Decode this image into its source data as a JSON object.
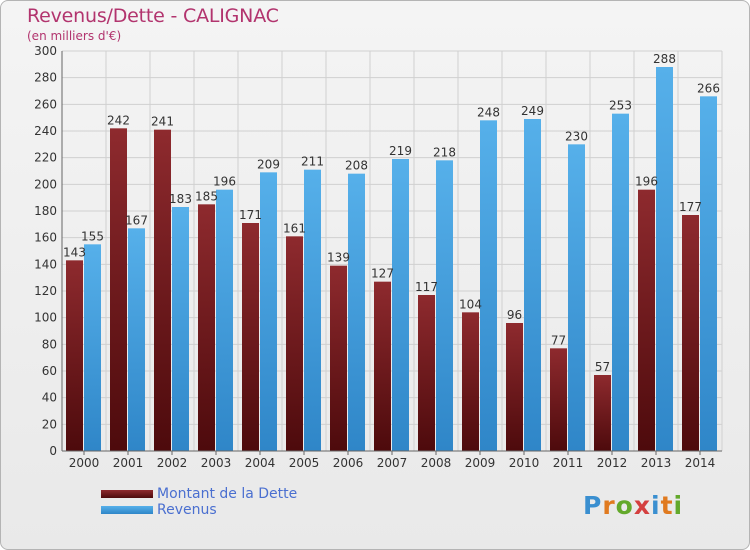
{
  "title": "Revenus/Dette - CALIGNAC",
  "subtitle": "(en milliers d'€)",
  "logo_text": "Proxiti",
  "colors": {
    "dette": "#7a1f22",
    "revenus": "#4aa3e0",
    "title": "#b2346e",
    "legend_text": "#4a6fd0"
  },
  "chart_data": {
    "type": "bar",
    "title": "Revenus/Dette - CALIGNAC",
    "ylabel": "(en milliers d'€)",
    "categories": [
      "2000",
      "2001",
      "2002",
      "2003",
      "2004",
      "2005",
      "2006",
      "2007",
      "2008",
      "2009",
      "2010",
      "2011",
      "2012",
      "2013",
      "2014"
    ],
    "series": [
      {
        "name": "Montant de la Dette",
        "values": [
          143,
          242,
          241,
          185,
          171,
          161,
          139,
          127,
          117,
          104,
          96,
          77,
          57,
          196,
          177
        ]
      },
      {
        "name": "Revenus",
        "values": [
          155,
          167,
          183,
          196,
          209,
          211,
          208,
          219,
          218,
          248,
          249,
          230,
          253,
          288,
          266
        ]
      }
    ],
    "ylim": [
      0,
      300
    ],
    "yticks": [
      0,
      20,
      40,
      60,
      80,
      100,
      120,
      140,
      160,
      180,
      200,
      220,
      240,
      260,
      280,
      300
    ],
    "grid": true,
    "legend_position": "bottom-left"
  }
}
